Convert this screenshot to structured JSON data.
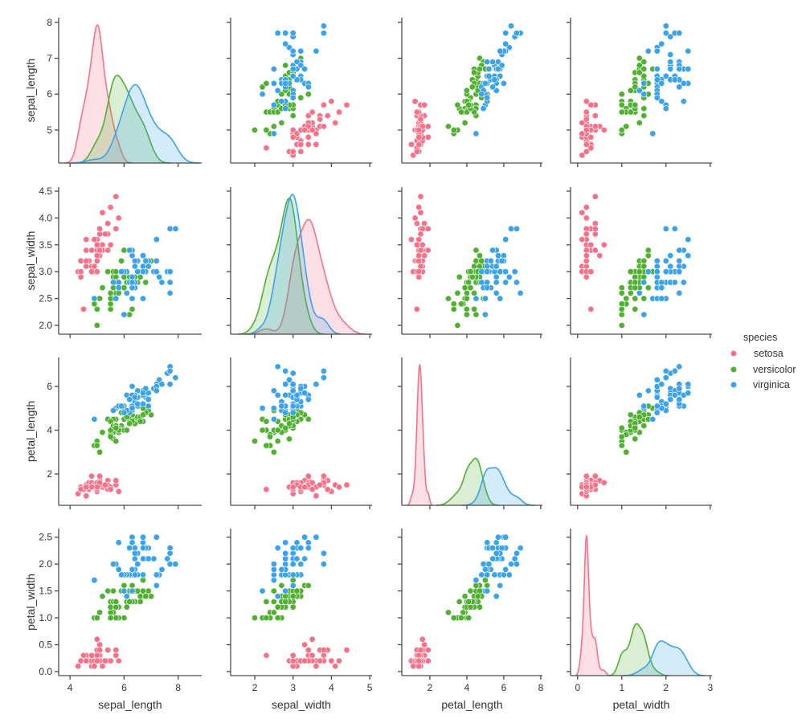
{
  "chart_data": {
    "type": "pairplot",
    "subtypes": {
      "diagonal": "kde",
      "off_diagonal": "scatter"
    },
    "variables": [
      "sepal_length",
      "sepal_width",
      "petal_length",
      "petal_width"
    ],
    "axes": [
      {
        "name": "sepal_length",
        "xlim": [
          3.58,
          8.87
        ],
        "ylim": [
          4.08,
          8.13
        ],
        "xticks": [
          4,
          6,
          8
        ],
        "xtick_labels": [
          "4",
          "6",
          "8"
        ],
        "yticks": [
          5,
          6,
          7,
          8
        ],
        "ytick_labels": [
          "5",
          "6",
          "7",
          "8"
        ]
      },
      {
        "name": "sepal_width",
        "xlim": [
          1.37,
          5.06
        ],
        "ylim": [
          1.835,
          4.575
        ],
        "xticks": [
          2,
          3,
          4,
          5
        ],
        "xtick_labels": [
          "2",
          "3",
          "4",
          "5"
        ],
        "yticks": [
          2.0,
          2.5,
          3.0,
          3.5,
          4.0,
          4.5
        ],
        "ytick_labels": [
          "2.0",
          "2.5",
          "3.0",
          "3.5",
          "4.0",
          "4.5"
        ]
      },
      {
        "name": "petal_length",
        "xlim": [
          0.48,
          8.09
        ],
        "ylim": [
          0.57,
          7.32
        ],
        "xticks": [
          2,
          4,
          6,
          8
        ],
        "xtick_labels": [
          "2",
          "4",
          "6",
          "8"
        ],
        "yticks": [
          2,
          4,
          6
        ],
        "ytick_labels": [
          "2",
          "4",
          "6"
        ]
      },
      {
        "name": "petal_width",
        "xlim": [
          -0.16,
          3.04
        ],
        "ylim": [
          -0.075,
          2.66
        ],
        "xticks": [
          0,
          1,
          2,
          3
        ],
        "xtick_labels": [
          "0",
          "1",
          "2",
          "3"
        ],
        "yticks": [
          0.0,
          0.5,
          1.0,
          1.5,
          2.0,
          2.5
        ],
        "ytick_labels": [
          "0.0",
          "0.5",
          "1.0",
          "1.5",
          "2.0",
          "2.5"
        ]
      }
    ],
    "legend": {
      "title": "species",
      "placement": "right",
      "entries": [
        {
          "name": "setosa",
          "color": "#f77189"
        },
        {
          "name": "versicolor",
          "color": "#50b131"
        },
        {
          "name": "virginica",
          "color": "#3ba3ec"
        }
      ]
    },
    "grid": false,
    "data": {
      "setosa": [
        [
          5.1,
          3.5,
          1.4,
          0.2
        ],
        [
          4.9,
          3.0,
          1.4,
          0.2
        ],
        [
          4.7,
          3.2,
          1.3,
          0.2
        ],
        [
          4.6,
          3.1,
          1.5,
          0.2
        ],
        [
          5.0,
          3.6,
          1.4,
          0.2
        ],
        [
          5.4,
          3.9,
          1.7,
          0.4
        ],
        [
          4.6,
          3.4,
          1.4,
          0.3
        ],
        [
          5.0,
          3.4,
          1.5,
          0.2
        ],
        [
          4.4,
          2.9,
          1.4,
          0.2
        ],
        [
          4.9,
          3.1,
          1.5,
          0.1
        ],
        [
          5.4,
          3.7,
          1.5,
          0.2
        ],
        [
          4.8,
          3.4,
          1.6,
          0.2
        ],
        [
          4.8,
          3.0,
          1.4,
          0.1
        ],
        [
          4.3,
          3.0,
          1.1,
          0.1
        ],
        [
          5.8,
          4.0,
          1.2,
          0.2
        ],
        [
          5.7,
          4.4,
          1.5,
          0.4
        ],
        [
          5.4,
          3.9,
          1.3,
          0.4
        ],
        [
          5.1,
          3.5,
          1.4,
          0.3
        ],
        [
          5.7,
          3.8,
          1.7,
          0.3
        ],
        [
          5.1,
          3.8,
          1.5,
          0.3
        ],
        [
          5.4,
          3.4,
          1.7,
          0.2
        ],
        [
          5.1,
          3.7,
          1.5,
          0.4
        ],
        [
          4.6,
          3.6,
          1.0,
          0.2
        ],
        [
          5.1,
          3.3,
          1.7,
          0.5
        ],
        [
          4.8,
          3.4,
          1.9,
          0.2
        ],
        [
          5.0,
          3.0,
          1.6,
          0.2
        ],
        [
          5.0,
          3.4,
          1.6,
          0.4
        ],
        [
          5.2,
          3.5,
          1.5,
          0.2
        ],
        [
          5.2,
          3.4,
          1.4,
          0.2
        ],
        [
          4.7,
          3.2,
          1.6,
          0.2
        ],
        [
          4.8,
          3.1,
          1.6,
          0.2
        ],
        [
          5.4,
          3.4,
          1.5,
          0.4
        ],
        [
          5.2,
          4.1,
          1.5,
          0.1
        ],
        [
          5.5,
          4.2,
          1.4,
          0.2
        ],
        [
          4.9,
          3.1,
          1.5,
          0.2
        ],
        [
          5.0,
          3.2,
          1.2,
          0.2
        ],
        [
          5.5,
          3.5,
          1.3,
          0.2
        ],
        [
          4.9,
          3.6,
          1.4,
          0.1
        ],
        [
          4.4,
          3.0,
          1.3,
          0.2
        ],
        [
          5.1,
          3.4,
          1.5,
          0.2
        ],
        [
          5.0,
          3.5,
          1.3,
          0.3
        ],
        [
          4.5,
          2.3,
          1.3,
          0.3
        ],
        [
          4.4,
          3.2,
          1.3,
          0.2
        ],
        [
          5.0,
          3.5,
          1.6,
          0.6
        ],
        [
          5.1,
          3.8,
          1.9,
          0.4
        ],
        [
          4.8,
          3.0,
          1.4,
          0.3
        ],
        [
          5.1,
          3.8,
          1.6,
          0.2
        ],
        [
          4.6,
          3.2,
          1.4,
          0.2
        ],
        [
          5.3,
          3.7,
          1.5,
          0.2
        ],
        [
          5.0,
          3.3,
          1.4,
          0.2
        ]
      ],
      "versicolor": [
        [
          7.0,
          3.2,
          4.7,
          1.4
        ],
        [
          6.4,
          3.2,
          4.5,
          1.5
        ],
        [
          6.9,
          3.1,
          4.9,
          1.5
        ],
        [
          5.5,
          2.3,
          4.0,
          1.3
        ],
        [
          6.5,
          2.8,
          4.6,
          1.5
        ],
        [
          5.7,
          2.8,
          4.5,
          1.3
        ],
        [
          6.3,
          3.3,
          4.7,
          1.6
        ],
        [
          4.9,
          2.4,
          3.3,
          1.0
        ],
        [
          6.6,
          2.9,
          4.6,
          1.3
        ],
        [
          5.2,
          2.7,
          3.9,
          1.4
        ],
        [
          5.0,
          2.0,
          3.5,
          1.0
        ],
        [
          5.9,
          3.0,
          4.2,
          1.5
        ],
        [
          6.0,
          2.2,
          4.0,
          1.0
        ],
        [
          6.1,
          2.9,
          4.7,
          1.4
        ],
        [
          5.6,
          2.9,
          3.6,
          1.3
        ],
        [
          6.7,
          3.1,
          4.4,
          1.4
        ],
        [
          5.6,
          3.0,
          4.5,
          1.5
        ],
        [
          5.8,
          2.7,
          4.1,
          1.0
        ],
        [
          6.2,
          2.2,
          4.5,
          1.5
        ],
        [
          5.6,
          2.5,
          3.9,
          1.1
        ],
        [
          5.9,
          3.2,
          4.8,
          1.8
        ],
        [
          6.1,
          2.8,
          4.0,
          1.3
        ],
        [
          6.3,
          2.5,
          4.9,
          1.5
        ],
        [
          6.1,
          2.8,
          4.7,
          1.2
        ],
        [
          6.4,
          2.9,
          4.3,
          1.3
        ],
        [
          6.6,
          3.0,
          4.4,
          1.4
        ],
        [
          6.8,
          2.8,
          4.8,
          1.4
        ],
        [
          6.7,
          3.0,
          5.0,
          1.7
        ],
        [
          6.0,
          2.9,
          4.5,
          1.5
        ],
        [
          5.7,
          2.6,
          3.5,
          1.0
        ],
        [
          5.5,
          2.4,
          3.8,
          1.1
        ],
        [
          5.5,
          2.4,
          3.7,
          1.0
        ],
        [
          5.8,
          2.7,
          3.9,
          1.2
        ],
        [
          6.0,
          2.7,
          5.1,
          1.6
        ],
        [
          5.4,
          3.0,
          4.5,
          1.5
        ],
        [
          6.0,
          3.4,
          4.5,
          1.6
        ],
        [
          6.7,
          3.1,
          4.7,
          1.5
        ],
        [
          6.3,
          2.3,
          4.4,
          1.3
        ],
        [
          5.6,
          3.0,
          4.1,
          1.3
        ],
        [
          5.5,
          2.5,
          4.0,
          1.3
        ],
        [
          5.5,
          2.6,
          4.4,
          1.2
        ],
        [
          6.1,
          3.0,
          4.6,
          1.4
        ],
        [
          5.8,
          2.6,
          4.0,
          1.2
        ],
        [
          5.0,
          2.3,
          3.3,
          1.0
        ],
        [
          5.6,
          2.7,
          4.2,
          1.3
        ],
        [
          5.7,
          3.0,
          4.2,
          1.2
        ],
        [
          5.7,
          2.9,
          4.2,
          1.3
        ],
        [
          6.2,
          2.9,
          4.3,
          1.3
        ],
        [
          5.1,
          2.5,
          3.0,
          1.1
        ],
        [
          5.7,
          2.8,
          4.1,
          1.3
        ]
      ],
      "virginica": [
        [
          6.3,
          3.3,
          6.0,
          2.5
        ],
        [
          5.8,
          2.7,
          5.1,
          1.9
        ],
        [
          7.1,
          3.0,
          5.9,
          2.1
        ],
        [
          6.3,
          2.9,
          5.6,
          1.8
        ],
        [
          6.5,
          3.0,
          5.8,
          2.2
        ],
        [
          7.6,
          3.0,
          6.6,
          2.1
        ],
        [
          4.9,
          2.5,
          4.5,
          1.7
        ],
        [
          7.3,
          2.9,
          6.3,
          1.8
        ],
        [
          6.7,
          2.5,
          5.8,
          1.8
        ],
        [
          7.2,
          3.6,
          6.1,
          2.5
        ],
        [
          6.5,
          3.2,
          5.1,
          2.0
        ],
        [
          6.4,
          2.7,
          5.3,
          1.9
        ],
        [
          6.8,
          3.0,
          5.5,
          2.1
        ],
        [
          5.7,
          2.5,
          5.0,
          2.0
        ],
        [
          5.8,
          2.8,
          5.1,
          2.4
        ],
        [
          6.4,
          3.2,
          5.3,
          2.3
        ],
        [
          6.5,
          3.0,
          5.5,
          1.8
        ],
        [
          7.7,
          3.8,
          6.7,
          2.2
        ],
        [
          7.7,
          2.6,
          6.9,
          2.3
        ],
        [
          6.0,
          2.2,
          5.0,
          1.5
        ],
        [
          6.9,
          3.2,
          5.7,
          2.3
        ],
        [
          5.6,
          2.8,
          4.9,
          2.0
        ],
        [
          7.7,
          2.8,
          6.7,
          2.0
        ],
        [
          6.3,
          2.7,
          4.9,
          1.8
        ],
        [
          6.7,
          3.3,
          5.7,
          2.1
        ],
        [
          7.2,
          3.2,
          6.0,
          1.8
        ],
        [
          6.2,
          2.8,
          4.8,
          1.8
        ],
        [
          6.1,
          3.0,
          4.9,
          1.8
        ],
        [
          6.4,
          2.8,
          5.6,
          2.1
        ],
        [
          7.2,
          3.0,
          5.8,
          1.6
        ],
        [
          7.4,
          2.8,
          6.1,
          1.9
        ],
        [
          7.9,
          3.8,
          6.4,
          2.0
        ],
        [
          6.4,
          2.8,
          5.6,
          2.2
        ],
        [
          6.3,
          2.8,
          5.1,
          1.5
        ],
        [
          6.1,
          2.6,
          5.6,
          1.4
        ],
        [
          7.7,
          3.0,
          6.1,
          2.3
        ],
        [
          6.3,
          3.4,
          5.6,
          2.4
        ],
        [
          6.4,
          3.1,
          5.5,
          1.8
        ],
        [
          6.0,
          3.0,
          4.8,
          1.8
        ],
        [
          6.9,
          3.1,
          5.4,
          2.1
        ],
        [
          6.7,
          3.1,
          5.6,
          2.4
        ],
        [
          6.9,
          3.1,
          5.1,
          2.3
        ],
        [
          5.8,
          2.7,
          5.1,
          1.9
        ],
        [
          6.8,
          3.2,
          5.9,
          2.3
        ],
        [
          6.7,
          3.3,
          5.7,
          2.5
        ],
        [
          6.7,
          3.0,
          5.2,
          2.3
        ],
        [
          6.3,
          2.5,
          5.0,
          1.9
        ],
        [
          6.5,
          3.0,
          5.2,
          2.0
        ],
        [
          6.2,
          3.4,
          5.4,
          2.3
        ],
        [
          5.9,
          3.0,
          5.1,
          1.8
        ]
      ]
    }
  }
}
